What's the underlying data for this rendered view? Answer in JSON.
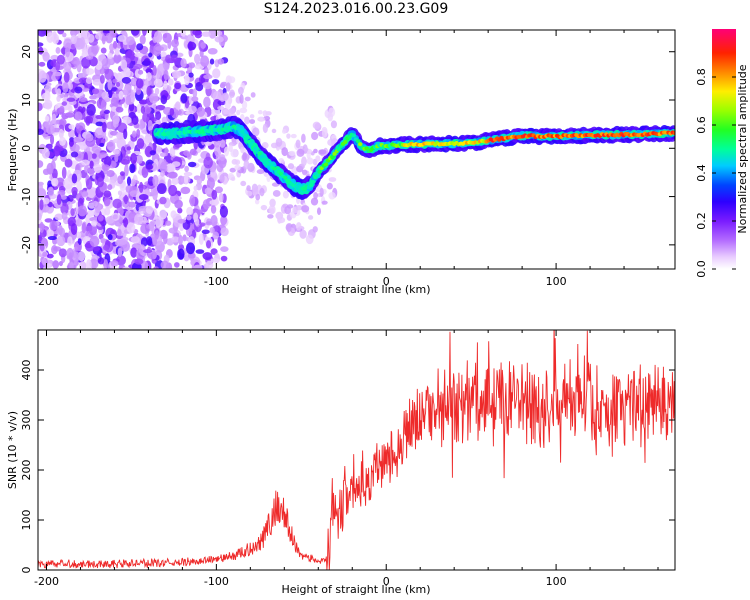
{
  "figure": {
    "title": "S124.2023.016.00.23.G09"
  },
  "colors": {
    "snr_line": "#ee2a2a",
    "colormap": [
      "#ffffff",
      "#e9ccff",
      "#b36bff",
      "#7a1cff",
      "#2d00ff",
      "#0044ff",
      "#00ccff",
      "#00ff99",
      "#22ff22",
      "#99ff00",
      "#ffee00",
      "#ff8800",
      "#ff2200",
      "#ff0077"
    ]
  },
  "chart_data": [
    {
      "type": "heatmap",
      "xlabel": "Height of straight line (km)",
      "ylabel": "Frequency (Hz)",
      "xlim": [
        -205,
        170
      ],
      "ylim": [
        -25,
        24.5
      ],
      "xticks": [
        "-200",
        "-100",
        "0",
        "100"
      ],
      "xtick_values": [
        -200,
        -100,
        0,
        100
      ],
      "yticks": [
        "-20",
        "-10",
        "0",
        "10",
        "20"
      ],
      "ytick_values": [
        -20,
        -10,
        0,
        10,
        20
      ],
      "grid": false,
      "ridge": {
        "x": [
          -130,
          -110,
          -95,
          -90,
          -85,
          -80,
          -75,
          -70,
          -65,
          -60,
          -55,
          -50,
          -45,
          -40,
          -35,
          -30,
          -25,
          -20,
          -15,
          -10,
          -5,
          0,
          10,
          20,
          30,
          40,
          50,
          60,
          70,
          80,
          90,
          100,
          110,
          120,
          130,
          140,
          150,
          160,
          170
        ],
        "y": [
          3,
          3.5,
          4,
          4.5,
          3.5,
          1,
          -1,
          -3,
          -4.5,
          -6,
          -7.5,
          -8.5,
          -8,
          -5,
          -3,
          -1,
          1,
          3,
          0.5,
          -0.5,
          0.5,
          0.5,
          0.8,
          0.8,
          0.9,
          1,
          1.1,
          1.6,
          2.1,
          2.6,
          2.5,
          2.5,
          2.6,
          2.7,
          2.8,
          2.8,
          2.9,
          3.0,
          3.2
        ]
      },
      "colorbar": {
        "label": "Normalized spectral amplitude",
        "range": [
          0,
          1
        ],
        "ticks": [
          "0.0",
          "0.2",
          "0.4",
          "0.6",
          "0.8"
        ],
        "tick_values": [
          0,
          0.2,
          0.4,
          0.6,
          0.8
        ]
      }
    },
    {
      "type": "line",
      "xlabel": "Height of straight line (km)",
      "ylabel": "SNR (10 * v/v)",
      "xlim": [
        -205,
        170
      ],
      "ylim": [
        0,
        480
      ],
      "xticks": [
        "-200",
        "-100",
        "0",
        "100"
      ],
      "xtick_values": [
        -200,
        -100,
        0,
        100
      ],
      "yticks": [
        "0",
        "100",
        "200",
        "300",
        "400"
      ],
      "ytick_values": [
        0,
        100,
        200,
        300,
        400
      ],
      "grid": false,
      "series": [
        {
          "x": [
            -205,
            -180,
            -150,
            -120,
            -100,
            -90,
            -80,
            -75,
            -70,
            -66,
            -63,
            -60,
            -56,
            -52,
            -48,
            -44,
            -40,
            -36,
            -34,
            -32,
            -30,
            -26,
            -22,
            -18,
            -14,
            -10,
            -6,
            -2,
            2,
            6,
            10,
            14,
            18,
            22,
            26,
            30,
            40,
            50,
            60,
            70,
            80,
            90,
            100,
            110,
            120,
            130,
            140,
            150,
            160,
            170
          ],
          "y": [
            12,
            12,
            13,
            15,
            22,
            28,
            42,
            55,
            80,
            115,
            135,
            110,
            70,
            38,
            28,
            22,
            18,
            17,
            30,
            120,
            95,
            130,
            160,
            175,
            180,
            195,
            200,
            215,
            230,
            245,
            265,
            285,
            300,
            315,
            320,
            325,
            330,
            335,
            340,
            345,
            335,
            330,
            330,
            330,
            325,
            320,
            330,
            325,
            335,
            345
          ]
        }
      ]
    }
  ]
}
